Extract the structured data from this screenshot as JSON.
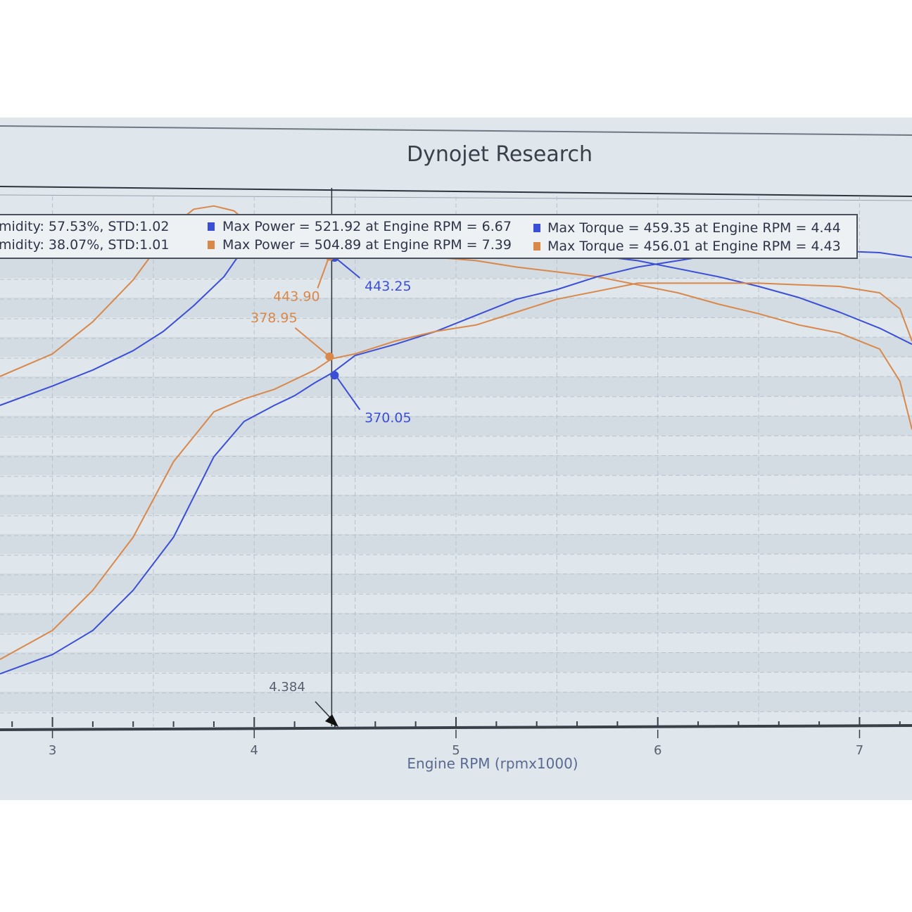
{
  "colors": {
    "blue": "#3b4fd6",
    "orange": "#d9884a",
    "cursor": "#2a2f38",
    "grid": "#b9c2cc",
    "band": "#c9d3dc"
  },
  "chart_data": {
    "type": "line",
    "title": "Dynojet Research",
    "xlabel": "Engine RPM (rpmx1000)",
    "ylabel": "",
    "xlim": [
      2.74,
      7.26
    ],
    "ylim": [
      150,
      480
    ],
    "x_ticks": [
      "3",
      "4",
      "5",
      "6",
      "7"
    ],
    "legend": {
      "position": "top",
      "rows": [
        {
          "conditions": "midity: 57.53%, STD:1.02",
          "max_power": "Max Power = 521.92 at Engine RPM = 6.67",
          "max_torque": "Max Torque = 459.35 at Engine RPM = 4.44",
          "color": "blue"
        },
        {
          "conditions": "midity: 38.07%, STD:1.01",
          "max_power": "Max Power = 504.89 at Engine RPM = 7.39",
          "max_torque": "Max Torque = 456.01 at Engine RPM = 4.43",
          "color": "orange"
        }
      ]
    },
    "cursor": {
      "x": 4.384,
      "label": "4.384"
    },
    "annotations": [
      {
        "label": "443.25",
        "x": 4.384,
        "y": 443.25,
        "color": "blue"
      },
      {
        "label": "443.90",
        "x": 4.384,
        "y": 443.9,
        "color": "orange"
      },
      {
        "label": "370.05",
        "x": 4.384,
        "y": 370.05,
        "color": "blue"
      },
      {
        "label": "378.95",
        "x": 4.384,
        "y": 378.95,
        "color": "orange"
      }
    ],
    "series": [
      {
        "color": "blue",
        "x": [
          2.74,
          3.0,
          3.2,
          3.4,
          3.55,
          3.7,
          3.85,
          3.95,
          4.05,
          4.15,
          4.22,
          4.3,
          4.384,
          4.5,
          4.7,
          4.9,
          5.1,
          5.3,
          5.5,
          5.7,
          5.9,
          6.1,
          6.3,
          6.5,
          6.7,
          6.9,
          7.1,
          7.26
        ],
        "y": [
          350,
          362,
          372,
          384,
          396,
          412,
          430,
          448,
          455,
          450,
          448,
          442,
          443,
          449,
          448,
          448,
          448,
          446,
          445,
          443,
          440,
          435,
          430,
          424,
          417,
          408,
          398,
          388
        ]
      },
      {
        "color": "orange",
        "x": [
          2.74,
          3.0,
          3.2,
          3.4,
          3.5,
          3.6,
          3.7,
          3.8,
          3.9,
          4.0,
          4.05,
          4.1,
          4.2,
          4.3,
          4.384,
          4.5,
          4.7,
          4.9,
          5.1,
          5.3,
          5.5,
          5.7,
          5.9,
          6.1,
          6.3,
          6.5,
          6.7,
          6.9,
          7.1,
          7.2,
          7.26
        ],
        "y": [
          368,
          382,
          402,
          428,
          445,
          462,
          472,
          474,
          471,
          460,
          446,
          452,
          448,
          446,
          444,
          446,
          444,
          442,
          440,
          436,
          433,
          430,
          425,
          420,
          413,
          407,
          400,
          395,
          385,
          365,
          335
        ]
      },
      {
        "color": "blue",
        "x": [
          2.74,
          3.0,
          3.2,
          3.4,
          3.6,
          3.8,
          3.95,
          4.1,
          4.2,
          4.3,
          4.384,
          4.5,
          4.7,
          4.9,
          5.1,
          5.3,
          5.5,
          5.7,
          5.9,
          6.1,
          6.3,
          6.5,
          6.7,
          6.9,
          7.1,
          7.26
        ],
        "y": [
          183,
          195,
          210,
          235,
          268,
          318,
          340,
          350,
          356,
          364,
          370,
          381,
          388,
          396,
          406,
          416,
          422,
          430,
          436,
          440,
          444,
          446,
          447,
          446,
          445,
          442
        ]
      },
      {
        "color": "orange",
        "x": [
          2.74,
          3.0,
          3.2,
          3.4,
          3.6,
          3.8,
          3.95,
          4.1,
          4.2,
          4.3,
          4.384,
          4.5,
          4.7,
          4.9,
          5.1,
          5.3,
          5.5,
          5.7,
          5.9,
          6.1,
          6.3,
          6.5,
          6.7,
          6.9,
          7.1,
          7.2,
          7.26
        ],
        "y": [
          192,
          210,
          235,
          268,
          315,
          346,
          354,
          360,
          366,
          372,
          379,
          382,
          390,
          396,
          400,
          408,
          416,
          421,
          426,
          426,
          426,
          426,
          425,
          424,
          420,
          410,
          390
        ]
      }
    ]
  }
}
